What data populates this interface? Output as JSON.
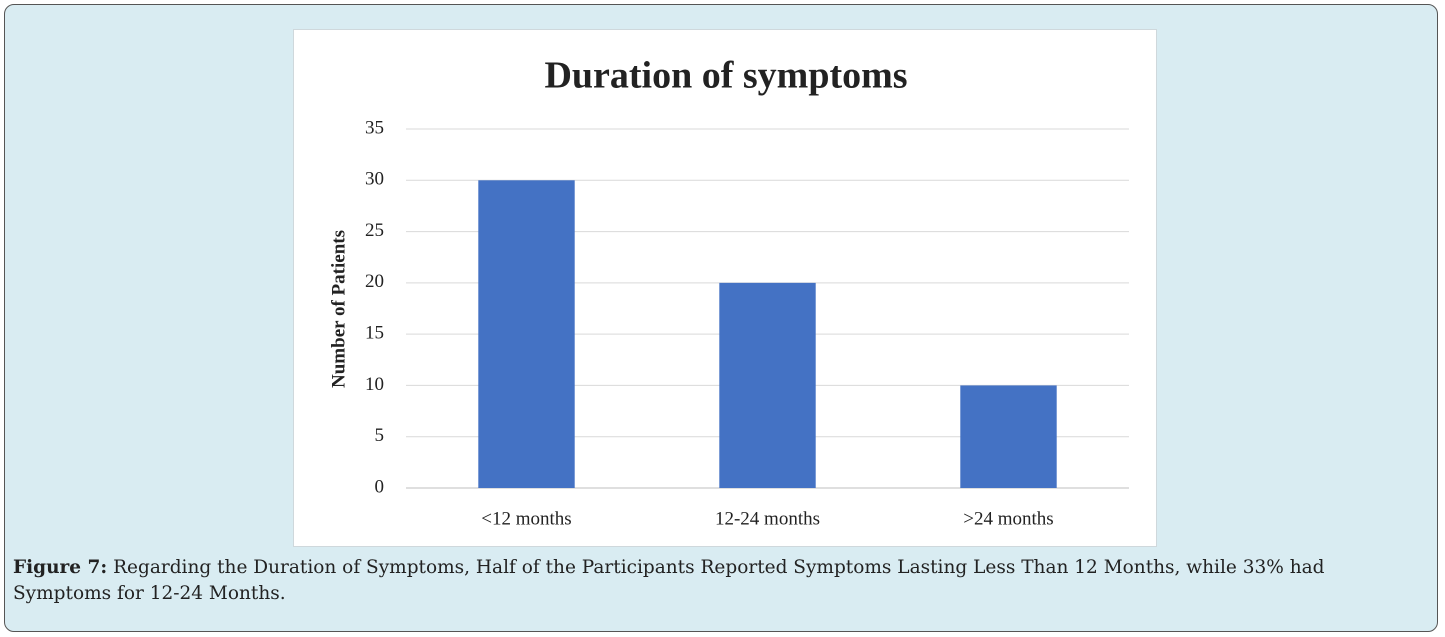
{
  "chart_data": {
    "type": "bar",
    "title": "Duration of symptoms",
    "y_label": "Number of Patients",
    "categories": [
      "<12 months",
      "12-24 months",
      ">24 months"
    ],
    "values": [
      30,
      20,
      10
    ],
    "color": "#4472c4",
    "ylim": [
      0,
      35
    ],
    "yticks": [
      0,
      5,
      10,
      15,
      20,
      25,
      30,
      35
    ],
    "grid": true
  },
  "caption": {
    "label": "Figure 7:",
    "text": "Regarding the Duration of Symptoms, Half of the Participants Reported Symptoms Lasting Less Than 12 Months, while 33% had Symptoms for 12-24 Months."
  }
}
